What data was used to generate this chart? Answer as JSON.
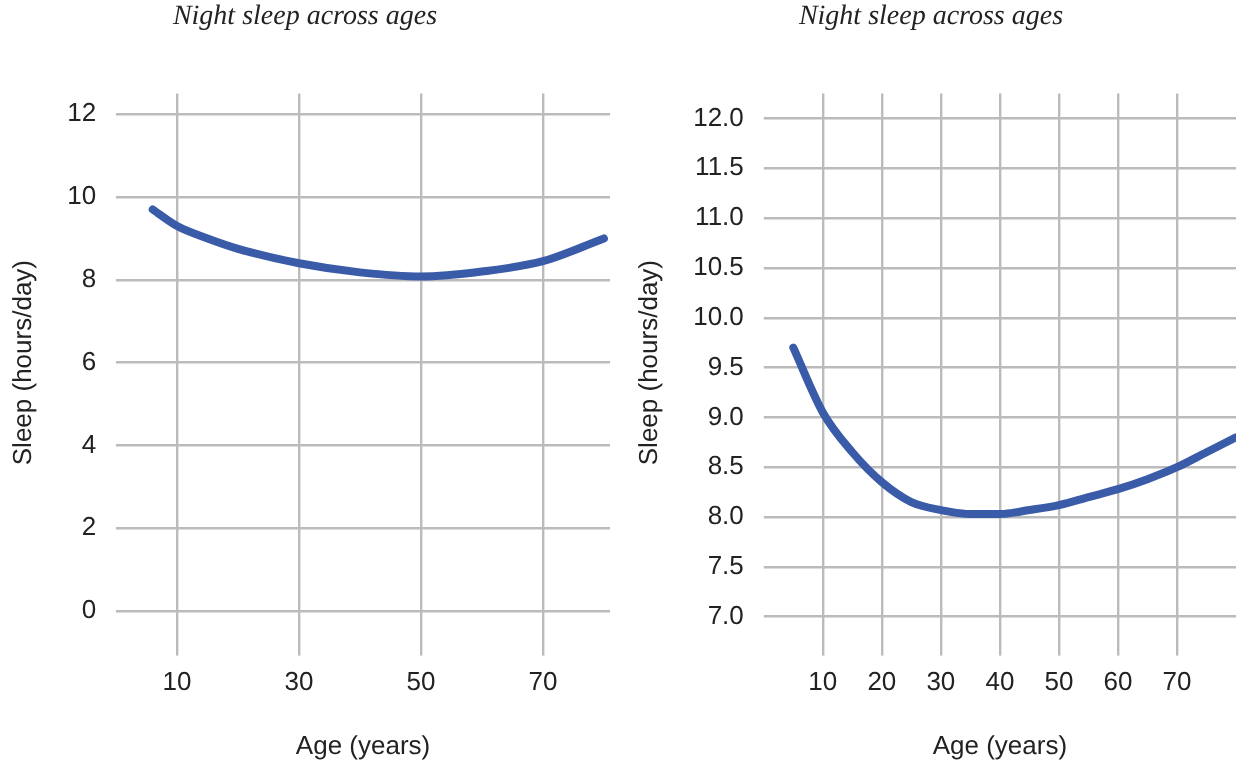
{
  "chart_data": [
    {
      "type": "line",
      "title": "Night sleep across ages",
      "xlabel": "Age (years)",
      "ylabel": "Sleep (hours/day)",
      "color": "#3a5ba8",
      "x": [
        6,
        10,
        15,
        20,
        30,
        40,
        50,
        60,
        70,
        80
      ],
      "values": [
        9.7,
        9.3,
        9.0,
        8.75,
        8.4,
        8.18,
        8.08,
        8.2,
        8.45,
        9.0
      ],
      "xlim": [
        0,
        81
      ],
      "xticks": [
        10,
        30,
        50,
        70
      ],
      "ylim": [
        -0.5,
        12.5
      ],
      "yticks": [
        0,
        2,
        4,
        6,
        8,
        10,
        12
      ],
      "grid": true
    },
    {
      "type": "line",
      "title": "Night sleep across ages",
      "xlabel": "Age (years)",
      "ylabel": "Sleep (hours/day)",
      "color": "#3a5ba8",
      "x": [
        5,
        10,
        15,
        20,
        25,
        30,
        35,
        40,
        45,
        50,
        55,
        60,
        65,
        70,
        75,
        80
      ],
      "values": [
        9.7,
        9.05,
        8.65,
        8.35,
        8.15,
        8.07,
        8.03,
        8.03,
        8.07,
        8.12,
        8.2,
        8.28,
        8.38,
        8.5,
        8.65,
        8.8
      ],
      "xlim": [
        0,
        80
      ],
      "xticks": [
        10,
        20,
        30,
        40,
        50,
        60,
        70
      ],
      "ylim": [
        6.85,
        12.25
      ],
      "yticks": [
        {
          "value": 7,
          "label": "7.0"
        },
        {
          "value": 7.5,
          "label": "7.5"
        },
        {
          "value": 8,
          "label": "8.0"
        },
        {
          "value": 8.5,
          "label": "8.5"
        },
        {
          "value": 9,
          "label": "9.0"
        },
        {
          "value": 9.5,
          "label": "9.5"
        },
        {
          "value": 10,
          "label": "10.0"
        },
        {
          "value": 10.5,
          "label": "10.5"
        },
        {
          "value": 11,
          "label": "11.0"
        },
        {
          "value": 11.5,
          "label": "11.5"
        },
        {
          "value": 12,
          "label": "12.0"
        }
      ],
      "grid": true
    }
  ]
}
